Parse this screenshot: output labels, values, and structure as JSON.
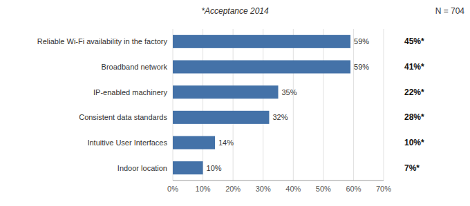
{
  "chart_data": {
    "type": "bar",
    "orientation": "horizontal",
    "subtitle": "*Acceptance 2014",
    "categories": [
      "Indoor location",
      "Intuitive User Interfaces",
      "Consistent data standards",
      "IP-enabled machinery",
      "Broadband network",
      "Reliable Wi-Fi availability in the factory"
    ],
    "values": [
      10,
      14,
      32,
      35,
      59,
      59
    ],
    "value_labels": [
      "10%",
      "14%",
      "32%",
      "35%",
      "59%",
      "59%"
    ],
    "data_labels": true,
    "color": "#4472a8",
    "xlim": [
      0,
      70
    ],
    "xticks": [
      {
        "value": 0,
        "label": "0%"
      },
      {
        "value": 10,
        "label": "10%"
      },
      {
        "value": 20,
        "label": "20%"
      },
      {
        "value": 30,
        "label": "30%"
      },
      {
        "value": 40,
        "label": "40%"
      },
      {
        "value": 50,
        "label": "50%"
      },
      {
        "value": 60,
        "label": "60%"
      },
      {
        "value": 70,
        "label": "70%"
      }
    ],
    "grid": true,
    "annotations": [
      {
        "text": "N = 704"
      },
      {
        "text": "7%*",
        "category": "Indoor location"
      },
      {
        "text": "10%*",
        "category": "Intuitive User Interfaces"
      },
      {
        "text": "28%*",
        "category": "Consistent data standards"
      },
      {
        "text": "22%*",
        "category": "IP-enabled machinery"
      },
      {
        "text": "41%*",
        "category": "Broadband network"
      },
      {
        "text": "45%*",
        "category": "Reliable Wi-Fi availability in the factory"
      }
    ]
  }
}
